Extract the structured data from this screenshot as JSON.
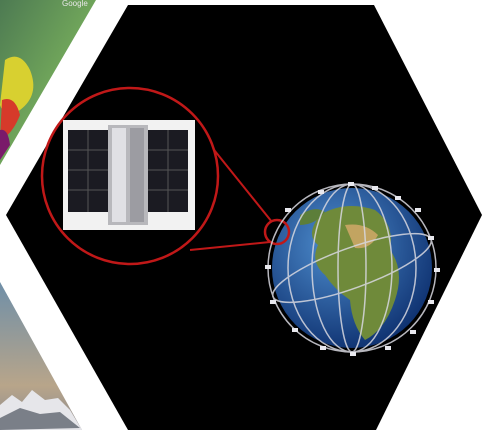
{
  "map_label": "Google"
}
